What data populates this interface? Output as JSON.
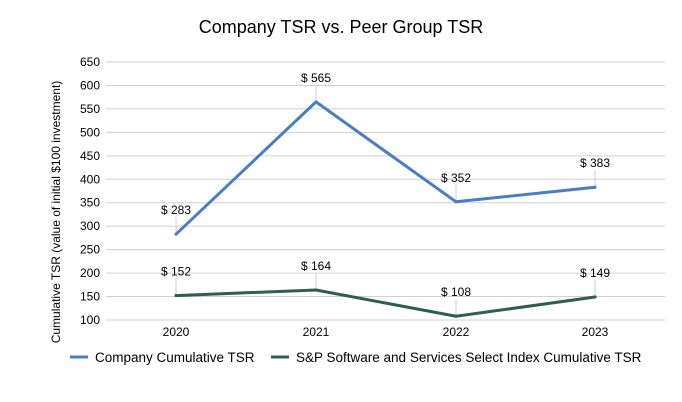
{
  "chart_data": {
    "type": "line",
    "title": "Company TSR vs. Peer Group TSR",
    "xlabel": "",
    "ylabel": "Cumulative TSR (value of initial $100 investment)",
    "categories": [
      "2020",
      "2021",
      "2022",
      "2023"
    ],
    "ylim": [
      100,
      650
    ],
    "yticks": [
      100,
      150,
      200,
      250,
      300,
      350,
      400,
      450,
      500,
      550,
      600,
      650
    ],
    "grid": true,
    "legend": "bottom",
    "series": [
      {
        "name": "Company Cumulative TSR",
        "color": "#4a7ec4",
        "values": [
          283,
          565,
          352,
          383
        ],
        "labels": [
          "$ 283",
          "$ 565",
          "$ 352",
          "$ 383"
        ]
      },
      {
        "name": "S&P Software and Services Select Index Cumulative TSR",
        "color": "#2f5e50",
        "values": [
          152,
          164,
          108,
          149
        ],
        "labels": [
          "$ 152",
          "$ 164",
          "$ 108",
          "$ 149"
        ]
      }
    ]
  }
}
